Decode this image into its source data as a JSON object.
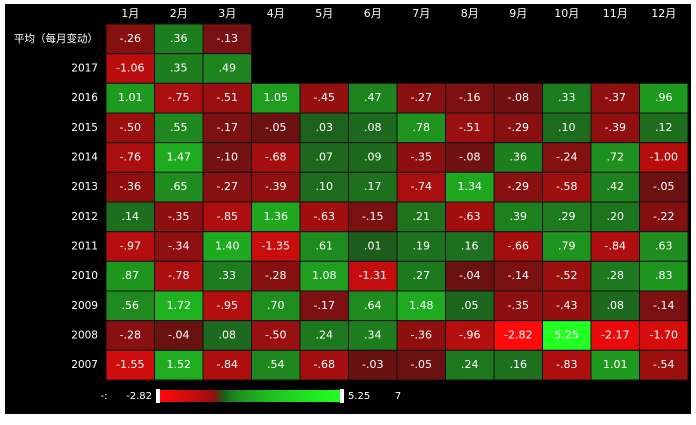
{
  "chart_data": {
    "type": "heatmap",
    "x_categories": [
      "1月",
      "2月",
      "3月",
      "4月",
      "5月",
      "6月",
      "7月",
      "8月",
      "9月",
      "10月",
      "11月",
      "12月"
    ],
    "y_categories": [
      "平均（每月变动）",
      "2017",
      "2016",
      "2015",
      "2014",
      "2013",
      "2012",
      "2011",
      "2010",
      "2009",
      "2008",
      "2007"
    ],
    "values": [
      [
        -0.26,
        0.36,
        -0.13,
        null,
        null,
        null,
        null,
        null,
        null,
        null,
        null,
        null
      ],
      [
        -1.06,
        0.35,
        0.49,
        null,
        null,
        null,
        null,
        null,
        null,
        null,
        null,
        null
      ],
      [
        1.01,
        -0.75,
        -0.51,
        1.05,
        -0.45,
        0.47,
        -0.27,
        -0.16,
        -0.08,
        0.33,
        -0.37,
        0.96
      ],
      [
        -0.5,
        0.55,
        -0.17,
        -0.05,
        0.03,
        0.08,
        0.78,
        -0.51,
        -0.29,
        0.1,
        -0.39,
        0.12
      ],
      [
        -0.76,
        1.47,
        -0.1,
        -0.68,
        0.07,
        0.09,
        -0.35,
        -0.08,
        0.36,
        -0.24,
        0.72,
        -1.0
      ],
      [
        -0.36,
        0.65,
        -0.27,
        -0.39,
        0.1,
        0.17,
        -0.74,
        1.34,
        -0.29,
        -0.58,
        0.42,
        -0.05
      ],
      [
        0.14,
        -0.35,
        -0.85,
        1.36,
        -0.63,
        -0.15,
        0.21,
        -0.63,
        0.39,
        0.29,
        0.2,
        -0.22
      ],
      [
        -0.97,
        -0.34,
        1.4,
        -1.35,
        0.61,
        0.01,
        0.19,
        0.16,
        -0.66,
        0.79,
        -0.84,
        0.63
      ],
      [
        0.87,
        -0.78,
        0.33,
        -0.28,
        1.08,
        -1.31,
        0.27,
        -0.04,
        -0.14,
        -0.52,
        0.28,
        0.83
      ],
      [
        0.56,
        1.72,
        -0.95,
        0.7,
        -0.17,
        0.64,
        1.48,
        0.05,
        -0.35,
        -0.43,
        0.08,
        -0.14
      ],
      [
        -0.28,
        -0.04,
        0.08,
        -0.5,
        0.24,
        0.34,
        -0.36,
        -0.96,
        -2.82,
        5.25,
        -2.17,
        -1.7
      ],
      [
        -1.55,
        1.52,
        -0.84,
        0.54,
        -0.68,
        -0.03,
        -0.05,
        0.24,
        0.16,
        -0.83,
        1.01,
        -0.54
      ]
    ],
    "value_labels": [
      [
        "-.26",
        ".36",
        "-.13",
        null,
        null,
        null,
        null,
        null,
        null,
        null,
        null,
        null
      ],
      [
        "-1.06",
        ".35",
        ".49",
        null,
        null,
        null,
        null,
        null,
        null,
        null,
        null,
        null
      ],
      [
        "1.01",
        "-.75",
        "-.51",
        "1.05",
        "-.45",
        ".47",
        "-.27",
        "-.16",
        "-.08",
        ".33",
        "-.37",
        ".96"
      ],
      [
        "-.50",
        ".55",
        "-.17",
        "-.05",
        ".03",
        ".08",
        ".78",
        "-.51",
        "-.29",
        ".10",
        "-.39",
        ".12"
      ],
      [
        "-.76",
        "1.47",
        "-.10",
        "-.68",
        ".07",
        ".09",
        "-.35",
        "-.08",
        ".36",
        "-.24",
        ".72",
        "-1.00"
      ],
      [
        "-.36",
        ".65",
        "-.27",
        "-.39",
        ".10",
        ".17",
        "-.74",
        "1.34",
        "-.29",
        "-.58",
        ".42",
        "-.05"
      ],
      [
        ".14",
        "-.35",
        "-.85",
        "1.36",
        "-.63",
        "-.15",
        ".21",
        "-.63",
        ".39",
        ".29",
        ".20",
        "-.22"
      ],
      [
        "-.97",
        "-.34",
        "1.40",
        "-1.35",
        ".61",
        ".01",
        ".19",
        ".16",
        "-.66",
        ".79",
        "-.84",
        ".63"
      ],
      [
        ".87",
        "-.78",
        ".33",
        "-.28",
        "1.08",
        "-1.31",
        ".27",
        "-.04",
        "-.14",
        "-.52",
        ".28",
        ".83"
      ],
      [
        ".56",
        "1.72",
        "-.95",
        ".70",
        "-.17",
        ".64",
        "1.48",
        ".05",
        "-.35",
        "-.43",
        ".08",
        "-.14"
      ],
      [
        "-.28",
        "-.04",
        ".08",
        "-.50",
        ".24",
        ".34",
        "-.36",
        "-.96",
        "-2.82",
        "5.25",
        "-2.17",
        "-1.70"
      ],
      [
        "-1.55",
        "1.52",
        "-.84",
        ".54",
        "-.68",
        "-.03",
        "-.05",
        ".24",
        ".16",
        "-.83",
        "1.01",
        "-.54"
      ]
    ],
    "colorbar": {
      "min": -2.82,
      "max": 5.25,
      "min_color": "#ff0a0a",
      "max_color": "#22ff22"
    },
    "annotations": [
      "-:",
      "7"
    ]
  }
}
